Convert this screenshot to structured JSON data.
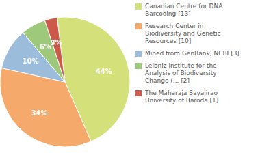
{
  "chart_data": {
    "type": "pie",
    "categories": [
      "Canadian Centre for DNA\nBarcoding [13]",
      "Research Center in\nBiodiversity and Genetic\nResources [10]",
      "Mined from GenBank, NCBI [3]",
      "Leibniz Institute for the\nAnalysis of Biodiversity\nChange (... [2]",
      "The Maharaja Sayajirao\nUniversity of Baroda [1]"
    ],
    "values": [
      44,
      34,
      10,
      6,
      3
    ],
    "value_labels": [
      "44%",
      "34%",
      "10%",
      "6%",
      "3%"
    ],
    "colors": [
      "#d4e07a",
      "#f5a96a",
      "#9bbcda",
      "#9ec87a",
      "#cc5a4a"
    ],
    "data_labels": true,
    "legend": "right"
  }
}
